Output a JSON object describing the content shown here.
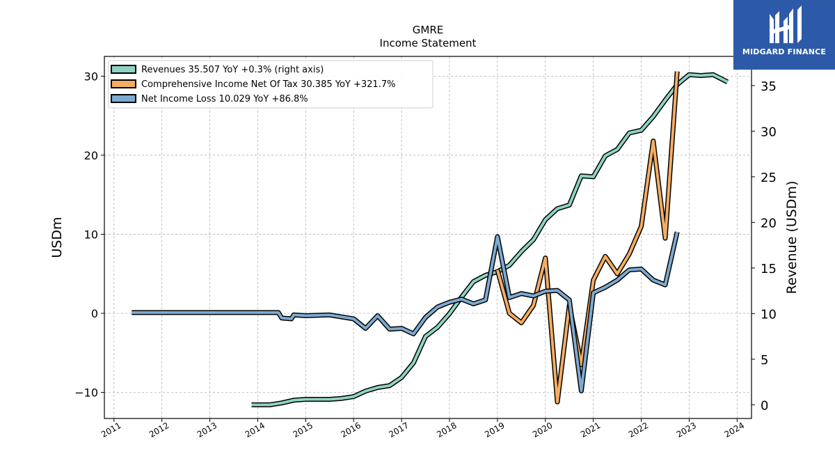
{
  "chart_data": {
    "type": "line",
    "title": "GMRE",
    "subtitle": "Income Statement",
    "ylabel_left": "USDm",
    "ylabel_right": "Revenue (USDm)",
    "xlim": [
      2010.8,
      2024.3
    ],
    "ylim_left": [
      -13.3,
      32.5
    ],
    "ylim_right": [
      -1.5,
      38.2
    ],
    "x_ticks": [
      2011,
      2012,
      2013,
      2014,
      2015,
      2016,
      2017,
      2018,
      2019,
      2020,
      2021,
      2022,
      2023,
      2024
    ],
    "x_tick_labels": [
      "2011",
      "2012",
      "2013",
      "2014",
      "2015",
      "2016",
      "2017",
      "2018",
      "2019",
      "2020",
      "2021",
      "2022",
      "2023",
      "2024"
    ],
    "y_left_ticks": [
      -10,
      0,
      10,
      20,
      30
    ],
    "y_left_tick_labels": [
      "−10",
      "0",
      "10",
      "20",
      "30"
    ],
    "y_right_ticks": [
      0,
      5,
      10,
      15,
      20,
      25,
      30,
      35
    ],
    "y_right_tick_labels": [
      "0",
      "5",
      "10",
      "15",
      "20",
      "25",
      "30",
      "35"
    ],
    "grid": true,
    "legend_position": "top-left",
    "series": [
      {
        "name": "Revenues",
        "legend_label": "Revenues  35.507 YoY +0.3% (right axis)",
        "axis": "right",
        "color": "#8fd3c3",
        "x": [
          2013.87,
          2014.25,
          2014.5,
          2014.75,
          2015.0,
          2015.25,
          2015.5,
          2015.75,
          2016.0,
          2016.25,
          2016.5,
          2016.75,
          2017.0,
          2017.25,
          2017.5,
          2017.75,
          2018.0,
          2018.25,
          2018.5,
          2018.75,
          2019.0,
          2019.25,
          2019.5,
          2019.75,
          2020.0,
          2020.25,
          2020.5,
          2020.75,
          2021.0,
          2021.25,
          2021.5,
          2021.75,
          2022.0,
          2022.25,
          2022.5,
          2022.75,
          2023.0,
          2023.25,
          2023.5,
          2023.8
        ],
        "values": [
          0.0,
          0.0,
          0.2,
          0.5,
          0.6,
          0.6,
          0.6,
          0.7,
          0.9,
          1.5,
          1.9,
          2.1,
          3.0,
          4.6,
          7.5,
          8.5,
          10.0,
          11.8,
          13.5,
          14.2,
          14.6,
          15.3,
          16.8,
          18.1,
          20.3,
          21.5,
          21.9,
          25.1,
          25.0,
          27.3,
          28.0,
          29.8,
          30.1,
          31.6,
          33.4,
          35.1,
          36.2,
          36.1,
          36.2,
          35.4
        ]
      },
      {
        "name": "Comprehensive Income Net Of Tax",
        "legend_label": "Comprehensive Income Net Of Tax  30.385 YoY +321.7%",
        "axis": "left",
        "color": "#f5ad63",
        "x": [
          2019.0,
          2019.25,
          2019.5,
          2019.75,
          2020.0,
          2020.25,
          2020.5,
          2020.75,
          2021.0,
          2021.25,
          2021.5,
          2021.75,
          2022.0,
          2022.25,
          2022.5,
          2022.75
        ],
        "values": [
          5.5,
          0.0,
          -1.2,
          1.0,
          7.0,
          -11.2,
          1.0,
          -6.5,
          4.2,
          7.2,
          5.0,
          7.5,
          11.0,
          21.8,
          9.5,
          30.6
        ]
      },
      {
        "name": "Net Income Loss",
        "legend_label": "Net Income Loss  10.029 YoY +86.8%",
        "axis": "left",
        "color": "#7eaad1",
        "x": [
          2011.37,
          2012.0,
          2012.5,
          2013.0,
          2013.5,
          2014.0,
          2014.43,
          2014.5,
          2014.7,
          2014.75,
          2015.0,
          2015.5,
          2016.0,
          2016.25,
          2016.5,
          2016.75,
          2017.0,
          2017.25,
          2017.5,
          2017.75,
          2018.0,
          2018.25,
          2018.5,
          2018.75,
          2019.0,
          2019.25,
          2019.5,
          2019.75,
          2020.0,
          2020.25,
          2020.5,
          2020.75,
          2021.0,
          2021.25,
          2021.5,
          2021.75,
          2022.0,
          2022.25,
          2022.5,
          2022.75
        ],
        "values": [
          0.1,
          0.1,
          0.1,
          0.1,
          0.1,
          0.1,
          0.1,
          -0.6,
          -0.7,
          -0.2,
          -0.3,
          -0.2,
          -0.7,
          -1.9,
          -0.3,
          -2.0,
          -1.9,
          -2.6,
          -0.5,
          0.8,
          1.4,
          1.8,
          1.2,
          1.7,
          9.7,
          2.0,
          2.5,
          2.2,
          2.8,
          2.9,
          1.7,
          -9.8,
          2.6,
          3.3,
          4.2,
          5.5,
          5.6,
          4.2,
          3.6,
          10.3
        ]
      }
    ]
  },
  "logo": {
    "text": "MIDGARD FINANCE",
    "background": "#2d5aa8"
  }
}
